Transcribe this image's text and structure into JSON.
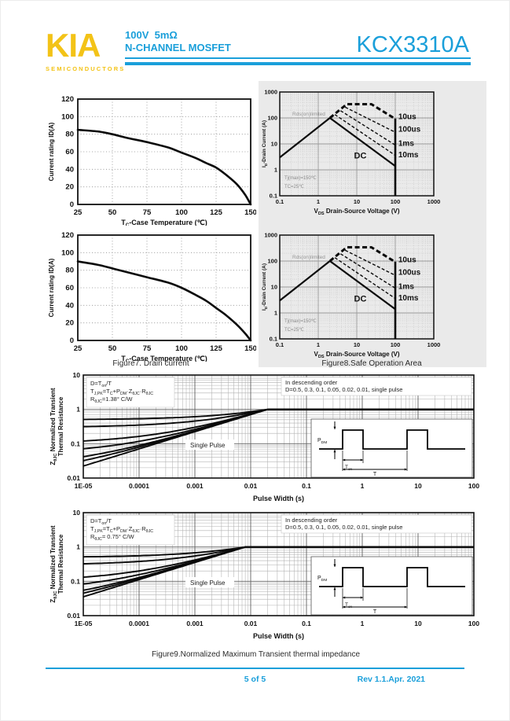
{
  "theme": {
    "accent_blue": "#1A9FDA",
    "logo_yellow": "#F3C317",
    "chart_bg_gray": "#EAEAEA",
    "curve_black": "#0A0A0A"
  },
  "header": {
    "logo": "KIA",
    "logo_sub": "SEMICONDUCTORS",
    "spec_line1": "100V  5mΩ",
    "spec_line2": "N-CHANNEL MOSFET",
    "part_number": "KCX3310A"
  },
  "captions": {
    "figure7": "Figure7. Drain current",
    "figure8": "Figure8.Safe Operation Area",
    "figure9": "Figure9.Normalized Maximum Transient thermal impedance"
  },
  "footer": {
    "page": "5 of 5",
    "rev": "Rev 1.1.Apr. 2021"
  },
  "chart_data": [
    {
      "id": "drain-current-top",
      "type": "line",
      "xlabel": "T_{C}-Case Temperature (℃)",
      "ylabel": "Current rating ID(A)",
      "xlim": [
        25,
        150
      ],
      "ylim": [
        0,
        120
      ],
      "xticks": [
        25,
        50,
        75,
        100,
        125,
        150
      ],
      "yticks": [
        0,
        20,
        40,
        60,
        80,
        100,
        120
      ],
      "grid": true,
      "points": [
        [
          25,
          85
        ],
        [
          40,
          83
        ],
        [
          50,
          80
        ],
        [
          60,
          76
        ],
        [
          75,
          71
        ],
        [
          90,
          65
        ],
        [
          100,
          59
        ],
        [
          110,
          53
        ],
        [
          118,
          47
        ],
        [
          125,
          42
        ],
        [
          132,
          34
        ],
        [
          140,
          23
        ],
        [
          146,
          11
        ],
        [
          150,
          0
        ]
      ]
    },
    {
      "id": "soa-top",
      "type": "line-loglog",
      "xlabel": "V_{DS} Drain-Source Voltage (V)",
      "ylabel": "I_{D}-Drain Current (A)",
      "xlim": [
        0.1,
        1000
      ],
      "ylim": [
        0.1,
        1000
      ],
      "xticks": [
        "0.1",
        "1",
        "10",
        "100",
        "1000"
      ],
      "yticks": [
        "0.1",
        "1",
        "10",
        "100",
        "1000"
      ],
      "series": [
        {
          "name": "Rds(on) limit",
          "style": "solid",
          "width": 2.2,
          "points": [
            [
              0.1,
              3
            ],
            [
              2,
              100
            ]
          ]
        },
        {
          "name": "DC",
          "style": "solid",
          "width": 2.2,
          "points": [
            [
              2,
              100
            ],
            [
              100,
              1.4
            ]
          ]
        },
        {
          "name": "voltage limit 100V",
          "style": "solid",
          "width": 2.6,
          "points": [
            [
              100,
              95
            ],
            [
              100,
              0.1
            ]
          ]
        },
        {
          "name": "10ms",
          "style": "dashed",
          "width": 1.4,
          "points": [
            [
              2.7,
              135
            ],
            [
              100,
              3.6
            ]
          ]
        },
        {
          "name": "1ms",
          "style": "dashed",
          "width": 1.4,
          "points": [
            [
              3.8,
              190
            ],
            [
              100,
              9
            ]
          ]
        },
        {
          "name": "100us",
          "style": "dashed",
          "width": 1.4,
          "points": [
            [
              5,
              260
            ],
            [
              100,
              28
            ]
          ]
        },
        {
          "name": "10us",
          "style": "dashed-thick",
          "width": 3,
          "points": [
            [
              2,
              100
            ],
            [
              5.5,
              340
            ],
            [
              24,
              340
            ],
            [
              100,
              92
            ]
          ]
        }
      ],
      "labels": [
        {
          "text": "10us",
          "x": 120,
          "y": 110
        },
        {
          "text": "100us",
          "x": 120,
          "y": 36
        },
        {
          "text": "1ms",
          "x": 120,
          "y": 10.5
        },
        {
          "text": "10ms",
          "x": 120,
          "y": 3.8
        },
        {
          "text": "DC",
          "x": 8.5,
          "y": 3.4
        }
      ],
      "corner_note": "Rds(on)limited",
      "conditions": [
        "Tj(max)=150℃",
        "TC=25℃"
      ]
    },
    {
      "id": "drain-current-bottom",
      "type": "line",
      "xlabel": "T_{C}-Case Temperature (℃)",
      "ylabel": "Current rating ID(A)",
      "xlim": [
        25,
        150
      ],
      "ylim": [
        0,
        120
      ],
      "xticks": [
        25,
        50,
        75,
        100,
        125,
        150
      ],
      "yticks": [
        0,
        20,
        40,
        60,
        80,
        100,
        120
      ],
      "grid": true,
      "points": [
        [
          25,
          90
        ],
        [
          40,
          86
        ],
        [
          50,
          82
        ],
        [
          60,
          78
        ],
        [
          75,
          72
        ],
        [
          90,
          66
        ],
        [
          100,
          60
        ],
        [
          110,
          52
        ],
        [
          118,
          45
        ],
        [
          125,
          37
        ],
        [
          132,
          29
        ],
        [
          140,
          18
        ],
        [
          146,
          8
        ],
        [
          150,
          0
        ]
      ]
    },
    {
      "id": "soa-bottom",
      "type": "line-loglog",
      "xlabel": "V_{DS} Drain-Source Voltage (V)",
      "ylabel": "I_{D}-Drain Current (A)",
      "xlim": [
        0.1,
        1000
      ],
      "ylim": [
        0.1,
        1000
      ],
      "xticks": [
        "0.1",
        "1",
        "10",
        "100",
        "1000"
      ],
      "yticks": [
        "0.1",
        "1",
        "10",
        "100",
        "1000"
      ],
      "series": [
        {
          "name": "Rds(on) limit",
          "style": "solid",
          "width": 2.2,
          "points": [
            [
              0.1,
              3
            ],
            [
              2,
              100
            ]
          ]
        },
        {
          "name": "DC",
          "style": "solid",
          "width": 2.2,
          "points": [
            [
              2,
              100
            ],
            [
              100,
              1.4
            ]
          ]
        },
        {
          "name": "voltage limit 100V",
          "style": "solid",
          "width": 2.6,
          "points": [
            [
              100,
              95
            ],
            [
              100,
              0.1
            ]
          ]
        },
        {
          "name": "10ms",
          "style": "dashed",
          "width": 1.4,
          "points": [
            [
              2.7,
              135
            ],
            [
              100,
              3.6
            ]
          ]
        },
        {
          "name": "1ms",
          "style": "dashed",
          "width": 1.4,
          "points": [
            [
              3.8,
              190
            ],
            [
              100,
              9
            ]
          ]
        },
        {
          "name": "100us",
          "style": "dashed",
          "width": 1.4,
          "points": [
            [
              5,
              260
            ],
            [
              100,
              28
            ]
          ]
        },
        {
          "name": "10us",
          "style": "dashed-thick",
          "width": 3,
          "points": [
            [
              2,
              100
            ],
            [
              5.5,
              340
            ],
            [
              24,
              340
            ],
            [
              100,
              92
            ]
          ]
        }
      ],
      "labels": [
        {
          "text": "10us",
          "x": 120,
          "y": 110
        },
        {
          "text": "100us",
          "x": 120,
          "y": 36
        },
        {
          "text": "1ms",
          "x": 120,
          "y": 10.5
        },
        {
          "text": "10ms",
          "x": 120,
          "y": 3.8
        },
        {
          "text": "DC",
          "x": 8.5,
          "y": 3.4
        }
      ],
      "corner_note": "Rds(on)limited",
      "conditions": [
        "Tj(max)=150℃",
        "TC=25℃"
      ]
    },
    {
      "id": "thermal-impedance-rjc-1_38",
      "type": "line-loglog",
      "xlabel": "Pulse Width (s)",
      "ylabel_lines": [
        "Z_{θJC} Normalized Transient",
        "Thermal Resistance"
      ],
      "xlim": [
        1e-05,
        100
      ],
      "ylim": [
        0.01,
        10
      ],
      "xticks": [
        "1E-05",
        "0.0001",
        "0.001",
        "0.01",
        "0.1",
        "1",
        "10",
        "100"
      ],
      "yticks": [
        "0.01",
        "0.1",
        "1",
        "10"
      ],
      "duty_cycles": [
        0.5,
        0.3,
        0.1,
        0.05,
        0.02,
        0.01,
        0
      ],
      "tau_converge_s": 0.02,
      "formula_lines": [
        "D=T_{on}/T",
        "T_{J,PK}=T_{C}+P_{DM}·Z_{θJC}·R_{θJC}",
        "R_{θJC}=1.38° C/W"
      ],
      "legend_lines": [
        "In descending order",
        "D=0.5, 0.3, 0.1, 0.05, 0.02, 0.01, single pulse"
      ],
      "single_pulse_label": "Single Pulse",
      "inset": {
        "pdm": "P_{DM}",
        "ton": "T_{on}",
        "t": "T"
      }
    },
    {
      "id": "thermal-impedance-rjc-0_75",
      "type": "line-loglog",
      "xlabel": "Pulse Width (s)",
      "ylabel_lines": [
        "Z_{θJC} Normalized Transient",
        "Thermal Resistance"
      ],
      "xlim": [
        1e-05,
        100
      ],
      "ylim": [
        0.01,
        10
      ],
      "xticks": [
        "1E-05",
        "0.0001",
        "0.001",
        "0.01",
        "0.1",
        "1",
        "10",
        "100"
      ],
      "yticks": [
        "0.01",
        "0.1",
        "1",
        "10"
      ],
      "duty_cycles": [
        0.5,
        0.3,
        0.1,
        0.05,
        0.02,
        0.01,
        0
      ],
      "tau_converge_s": 0.008,
      "formula_lines": [
        "D=T_{on}/T",
        "T_{J,PK}=T_{C}+P_{DM}·Z_{θJC}·R_{θJC}",
        "R_{θJC}= 0.75° C/W"
      ],
      "legend_lines": [
        "In descending order",
        "D=0.5, 0.3, 0.1, 0.05, 0.02, 0.01, single pulse"
      ],
      "single_pulse_label": "Single Pulse",
      "inset": {
        "pdm": "P_{DM}",
        "ton": "T_{on}",
        "t": "T"
      }
    }
  ]
}
